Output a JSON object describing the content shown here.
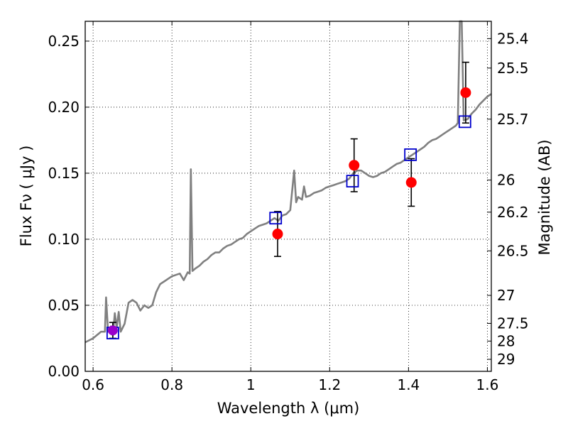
{
  "chart_data": {
    "type": "scatter",
    "title": "",
    "xlabel": "Wavelength  λ (μm)",
    "ylabel": "Flux  Fν  ( μJy )",
    "ylabel_right": "Magnitude (AB)",
    "xlim": [
      0.58,
      1.61
    ],
    "ylim": [
      0.0,
      0.265
    ],
    "grid": true,
    "legend": "none",
    "x_ticks": [
      {
        "value": 0.6,
        "label": "0.6"
      },
      {
        "value": 0.8,
        "label": "0.8"
      },
      {
        "value": 1.0,
        "label": "1"
      },
      {
        "value": 1.2,
        "label": "1.2"
      },
      {
        "value": 1.4,
        "label": "1.4"
      },
      {
        "value": 1.6,
        "label": "1.6"
      }
    ],
    "y_ticks": [
      {
        "value": 0.0,
        "label": "0.00"
      },
      {
        "value": 0.05,
        "label": "0.05"
      },
      {
        "value": 0.1,
        "label": "0.10"
      },
      {
        "value": 0.15,
        "label": "0.15"
      },
      {
        "value": 0.2,
        "label": "0.20"
      },
      {
        "value": 0.25,
        "label": "0.25"
      }
    ],
    "right_ticks": [
      {
        "label": "25.4",
        "flux": 0.2519
      },
      {
        "label": "25.5",
        "flux": 0.2296
      },
      {
        "label": "25.7",
        "flux": 0.1909
      },
      {
        "label": "26",
        "flux": 0.1448
      },
      {
        "label": "26.2",
        "flux": 0.1205
      },
      {
        "label": "26.5",
        "flux": 0.0912
      },
      {
        "label": "27",
        "flux": 0.0575
      },
      {
        "label": "27.5",
        "flux": 0.0363
      },
      {
        "label": "28",
        "flux": 0.0229
      },
      {
        "label": "29",
        "flux": 0.0091
      }
    ],
    "colors": {
      "model": "#808080",
      "observed": "#ff0000",
      "synthetic": "#0000cc",
      "optical": "#9900cc",
      "errorbar": "#000000"
    },
    "model_spectrum": [
      [
        0.58,
        0.022
      ],
      [
        0.6,
        0.025
      ],
      [
        0.62,
        0.03
      ],
      [
        0.63,
        0.03
      ],
      [
        0.633,
        0.056
      ],
      [
        0.638,
        0.03
      ],
      [
        0.645,
        0.034
      ],
      [
        0.65,
        0.027
      ],
      [
        0.655,
        0.044
      ],
      [
        0.66,
        0.033
      ],
      [
        0.665,
        0.045
      ],
      [
        0.67,
        0.03
      ],
      [
        0.68,
        0.036
      ],
      [
        0.69,
        0.052
      ],
      [
        0.7,
        0.054
      ],
      [
        0.71,
        0.052
      ],
      [
        0.72,
        0.046
      ],
      [
        0.73,
        0.05
      ],
      [
        0.74,
        0.048
      ],
      [
        0.75,
        0.05
      ],
      [
        0.76,
        0.06
      ],
      [
        0.77,
        0.066
      ],
      [
        0.78,
        0.068
      ],
      [
        0.79,
        0.07
      ],
      [
        0.8,
        0.072
      ],
      [
        0.81,
        0.073
      ],
      [
        0.82,
        0.074
      ],
      [
        0.83,
        0.069
      ],
      [
        0.84,
        0.075
      ],
      [
        0.845,
        0.074
      ],
      [
        0.848,
        0.153
      ],
      [
        0.852,
        0.076
      ],
      [
        0.86,
        0.078
      ],
      [
        0.87,
        0.08
      ],
      [
        0.88,
        0.083
      ],
      [
        0.89,
        0.085
      ],
      [
        0.9,
        0.088
      ],
      [
        0.91,
        0.09
      ],
      [
        0.92,
        0.09
      ],
      [
        0.93,
        0.093
      ],
      [
        0.94,
        0.095
      ],
      [
        0.95,
        0.096
      ],
      [
        0.96,
        0.098
      ],
      [
        0.97,
        0.1
      ],
      [
        0.98,
        0.101
      ],
      [
        0.99,
        0.104
      ],
      [
        1.0,
        0.106
      ],
      [
        1.01,
        0.108
      ],
      [
        1.02,
        0.11
      ],
      [
        1.03,
        0.111
      ],
      [
        1.04,
        0.112
      ],
      [
        1.05,
        0.114
      ],
      [
        1.06,
        0.116
      ],
      [
        1.07,
        0.114
      ],
      [
        1.08,
        0.118
      ],
      [
        1.09,
        0.119
      ],
      [
        1.1,
        0.122
      ],
      [
        1.11,
        0.152
      ],
      [
        1.115,
        0.128
      ],
      [
        1.12,
        0.132
      ],
      [
        1.13,
        0.13
      ],
      [
        1.135,
        0.14
      ],
      [
        1.14,
        0.132
      ],
      [
        1.15,
        0.133
      ],
      [
        1.16,
        0.135
      ],
      [
        1.17,
        0.136
      ],
      [
        1.18,
        0.137
      ],
      [
        1.19,
        0.139
      ],
      [
        1.2,
        0.14
      ],
      [
        1.21,
        0.141
      ],
      [
        1.22,
        0.142
      ],
      [
        1.23,
        0.143
      ],
      [
        1.24,
        0.144
      ],
      [
        1.25,
        0.146
      ],
      [
        1.26,
        0.15
      ],
      [
        1.27,
        0.152
      ],
      [
        1.28,
        0.152
      ],
      [
        1.29,
        0.15
      ],
      [
        1.3,
        0.148
      ],
      [
        1.31,
        0.147
      ],
      [
        1.32,
        0.148
      ],
      [
        1.33,
        0.15
      ],
      [
        1.34,
        0.151
      ],
      [
        1.35,
        0.153
      ],
      [
        1.36,
        0.155
      ],
      [
        1.37,
        0.157
      ],
      [
        1.38,
        0.158
      ],
      [
        1.39,
        0.16
      ],
      [
        1.4,
        0.162
      ],
      [
        1.41,
        0.164
      ],
      [
        1.42,
        0.166
      ],
      [
        1.43,
        0.168
      ],
      [
        1.44,
        0.17
      ],
      [
        1.45,
        0.173
      ],
      [
        1.46,
        0.175
      ],
      [
        1.47,
        0.176
      ],
      [
        1.48,
        0.178
      ],
      [
        1.49,
        0.18
      ],
      [
        1.5,
        0.182
      ],
      [
        1.51,
        0.184
      ],
      [
        1.52,
        0.186
      ],
      [
        1.525,
        0.188
      ],
      [
        1.53,
        0.265
      ],
      [
        1.535,
        0.265
      ],
      [
        1.54,
        0.19
      ],
      [
        1.55,
        0.191
      ],
      [
        1.56,
        0.195
      ],
      [
        1.57,
        0.198
      ],
      [
        1.58,
        0.202
      ],
      [
        1.59,
        0.205
      ],
      [
        1.6,
        0.208
      ],
      [
        1.61,
        0.21
      ]
    ],
    "observed": [
      {
        "x": 1.068,
        "y": 0.104,
        "yerr": 0.017
      },
      {
        "x": 1.262,
        "y": 0.156,
        "yerr": 0.02
      },
      {
        "x": 1.407,
        "y": 0.143,
        "yerr": 0.018
      },
      {
        "x": 1.545,
        "y": 0.211,
        "yerr": 0.023
      }
    ],
    "optical": [
      {
        "x": 0.65,
        "y": 0.031,
        "yerr": 0.006
      }
    ],
    "synthetic": [
      {
        "x": 0.65,
        "y": 0.029
      },
      {
        "x": 1.063,
        "y": 0.116
      },
      {
        "x": 1.258,
        "y": 0.144
      },
      {
        "x": 1.405,
        "y": 0.164
      },
      {
        "x": 1.543,
        "y": 0.189
      }
    ]
  }
}
